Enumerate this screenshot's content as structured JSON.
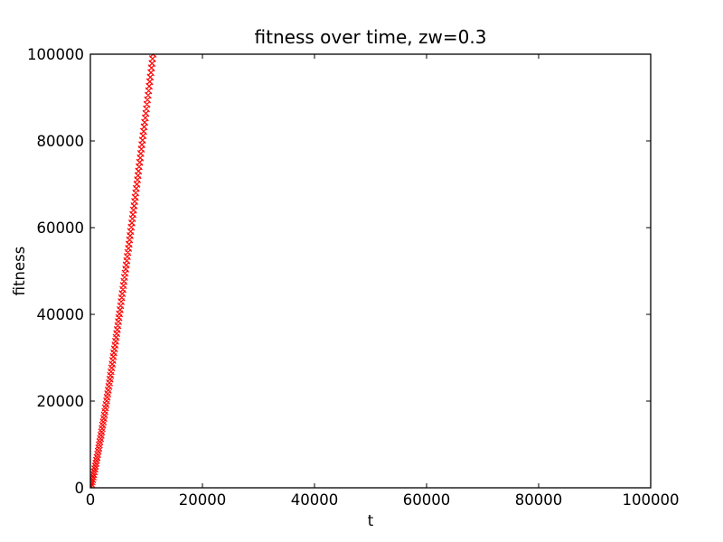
{
  "figure": {
    "background_color": "#ffffff",
    "text_color": "#000000"
  },
  "chart_data": {
    "type": "scatter",
    "title": "fitness over time, zw=0.3",
    "xlabel": "t",
    "ylabel": "fitness",
    "xlim": [
      0,
      100000
    ],
    "ylim": [
      0,
      100000
    ],
    "xticks": [
      0,
      20000,
      40000,
      60000,
      80000,
      100000
    ],
    "yticks": [
      0,
      20000,
      40000,
      60000,
      80000,
      100000
    ],
    "grid": false,
    "legend": "none",
    "series": [
      {
        "name": "fitness",
        "marker": "x",
        "color": "#ff0000",
        "x": [
          0,
          100,
          200,
          300,
          400,
          500,
          600,
          700,
          800,
          900,
          1000,
          1100,
          1200,
          1300,
          1400,
          1500,
          1600,
          1700,
          1800,
          1900,
          2000,
          2100,
          2200,
          2300,
          2400,
          2500,
          2600,
          2700,
          2800,
          2900,
          3000,
          3100,
          3200,
          3300,
          3400,
          3500,
          3600,
          3700,
          3800,
          3900,
          4000,
          4100,
          4200,
          4300,
          4400,
          4500,
          4600,
          4700,
          4800,
          4900,
          5000,
          5100,
          5200,
          5300,
          5400,
          5500,
          5600,
          5700,
          5800,
          5900,
          6000,
          6100,
          6200,
          6300,
          6400,
          6500,
          6600,
          6700,
          6800,
          6900,
          7000,
          7100,
          7200,
          7300,
          7400,
          7500,
          7600,
          7700,
          7800,
          7900,
          8000,
          8100,
          8200,
          8300,
          8400,
          8500,
          8600,
          8700,
          8800,
          8900,
          9000,
          9100,
          9200,
          9300,
          9400,
          9500,
          9600,
          9700,
          9800,
          9900,
          10000,
          10100,
          10200,
          10300,
          10400,
          10500,
          10600,
          10700,
          10800,
          10900,
          11000,
          11100,
          11200
        ],
        "y": [
          0,
          364,
          831,
          1347,
          1896,
          2473,
          3072,
          3690,
          4328,
          4976,
          5643,
          6321,
          7009,
          7709,
          8423,
          9140,
          9873,
          10608,
          11355,
          12109,
          12875,
          13655,
          14434,
          15214,
          15993,
          16798,
          17603,
          18408,
          19213,
          20040,
          20867,
          21694,
          22521,
          23369,
          24217,
          25065,
          25913,
          26777,
          27641,
          28506,
          29370,
          30253,
          31135,
          32018,
          32900,
          33797,
          34694,
          35591,
          36488,
          37400,
          38312,
          39223,
          40135,
          41060,
          41984,
          42909,
          43833,
          44771,
          45709,
          46647,
          47585,
          48535,
          49485,
          50434,
          51384,
          52344,
          53304,
          54264,
          55224,
          56197,
          57170,
          58142,
          59115,
          60097,
          61079,
          62060,
          63042,
          64034,
          65026,
          66017,
          67009,
          68011,
          69013,
          70015,
          71017,
          72027,
          73037,
          74047,
          75057,
          76076,
          77095,
          78114,
          79133,
          80161,
          81189,
          82218,
          83246,
          84282,
          85317,
          86353,
          87388,
          88433,
          89478,
          90522,
          91567,
          92617,
          93667,
          94717,
          95767,
          96826,
          97885,
          98945,
          100000
        ]
      }
    ]
  }
}
